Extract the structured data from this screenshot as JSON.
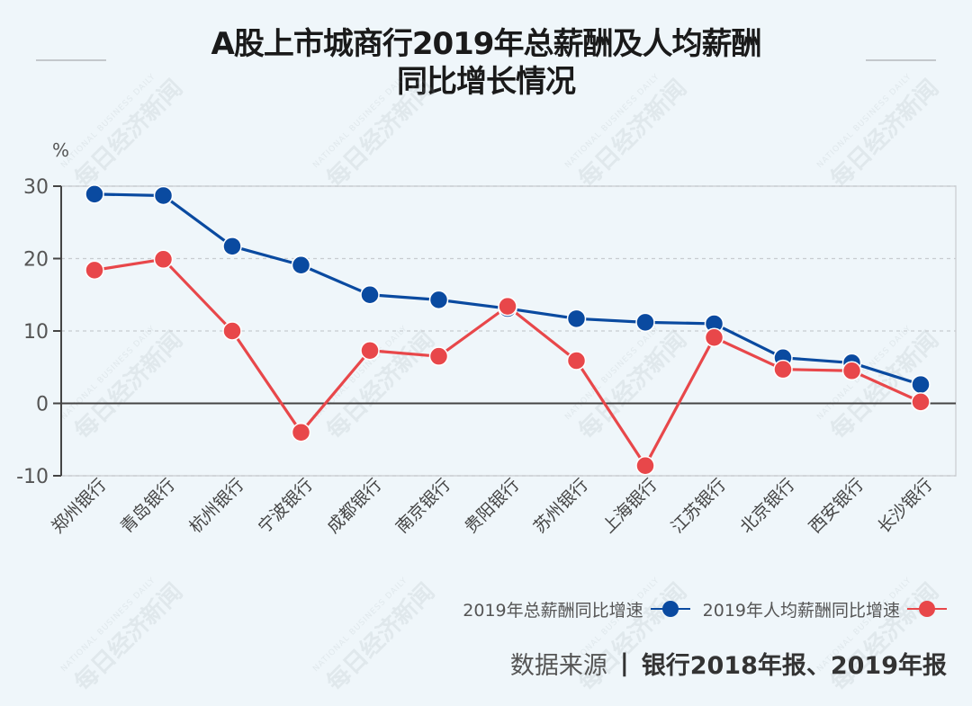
{
  "header": {
    "title_line1": "A股上市城商行2019年总薪酬及人均薪酬",
    "title_line2": "同比增长情况"
  },
  "watermark": {
    "text": "每日经济新闻",
    "subtext": "NATIONAL BUSINESS DAILY"
  },
  "colors": {
    "background": "#eff6fa",
    "series_total": "#0a4aa0",
    "series_per_capita": "#e8474a",
    "axis": "#444444",
    "grid": "#c8ccd0"
  },
  "chart_data": {
    "type": "line",
    "title": "A股上市城商行2019年总薪酬及人均薪酬同比增长情况",
    "xlabel": "",
    "ylabel": "%",
    "ylim": [
      -10,
      30
    ],
    "yticks": [
      30,
      20,
      10,
      0,
      -10
    ],
    "grid": true,
    "legend_position": "bottom-right",
    "categories": [
      "郑州银行",
      "青岛银行",
      "杭州银行",
      "宁波银行",
      "成都银行",
      "南京银行",
      "贵阳银行",
      "苏州银行",
      "上海银行",
      "江苏银行",
      "北京银行",
      "西安银行",
      "长沙银行"
    ],
    "series": [
      {
        "name": "2019年总薪酬同比增速",
        "color": "#0a4aa0",
        "values": [
          28.9,
          28.7,
          21.7,
          19.1,
          15.0,
          14.3,
          13.1,
          11.7,
          11.2,
          11.0,
          6.3,
          5.6,
          2.6
        ]
      },
      {
        "name": "2019年人均薪酬同比增速",
        "color": "#e8474a",
        "values": [
          18.4,
          19.9,
          10.0,
          -4.0,
          7.3,
          6.5,
          13.4,
          5.9,
          -8.6,
          9.1,
          4.7,
          4.5,
          0.2
        ]
      }
    ]
  },
  "legend": {
    "items": [
      {
        "label": "2019年总薪酬同比增速",
        "color": "#0a4aa0"
      },
      {
        "label": "2019年人均薪酬同比增速",
        "color": "#e8474a"
      }
    ]
  },
  "source": {
    "label": "数据来源",
    "separator": "|",
    "value": "银行2018年报、2019年报"
  }
}
